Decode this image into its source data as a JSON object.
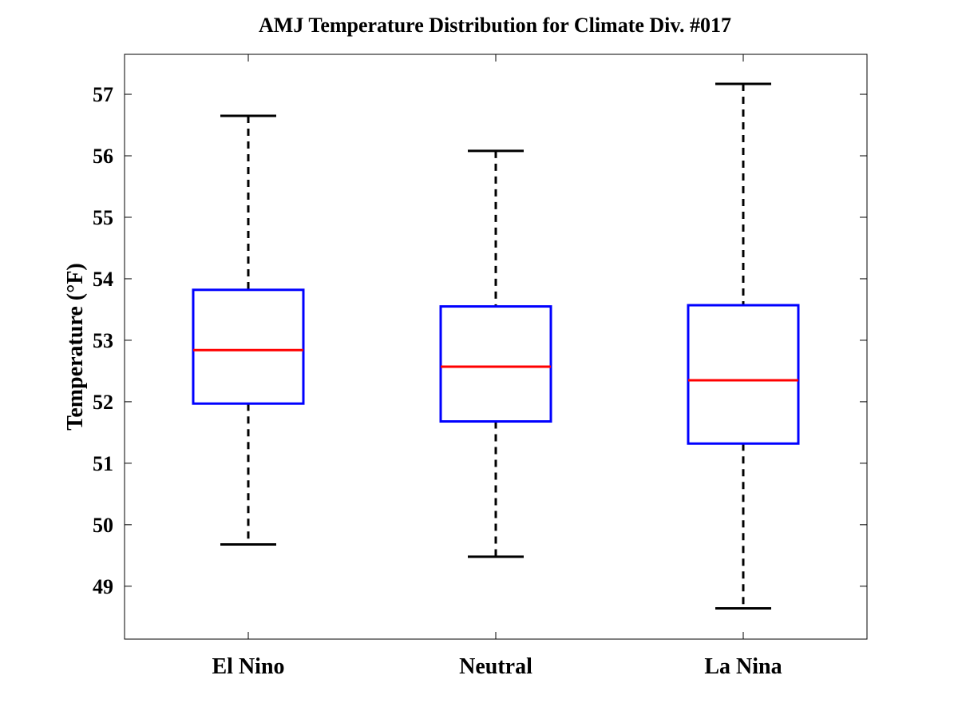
{
  "chart_data": {
    "type": "boxplot",
    "title": "AMJ Temperature Distribution for Climate Div. #017",
    "xlabel": "",
    "ylabel": "Temperature (°F)",
    "ylim": [
      48.14,
      57.65
    ],
    "yticks": [
      49,
      50,
      51,
      52,
      53,
      54,
      55,
      56,
      57
    ],
    "categories": [
      "El Nino",
      "Neutral",
      "La Nina"
    ],
    "boxes": [
      {
        "name": "El Nino",
        "whisker_low": 49.68,
        "q1": 51.97,
        "median": 52.84,
        "q3": 53.82,
        "whisker_high": 56.65
      },
      {
        "name": "Neutral",
        "whisker_low": 49.48,
        "q1": 51.68,
        "median": 52.57,
        "q3": 53.55,
        "whisker_high": 56.08
      },
      {
        "name": "La Nina",
        "whisker_low": 48.64,
        "q1": 51.32,
        "median": 52.35,
        "q3": 53.57,
        "whisker_high": 57.17
      }
    ],
    "grid": false,
    "colors": {
      "box": "#0000ff",
      "median": "#ff0000",
      "whisker": "#000000"
    }
  }
}
